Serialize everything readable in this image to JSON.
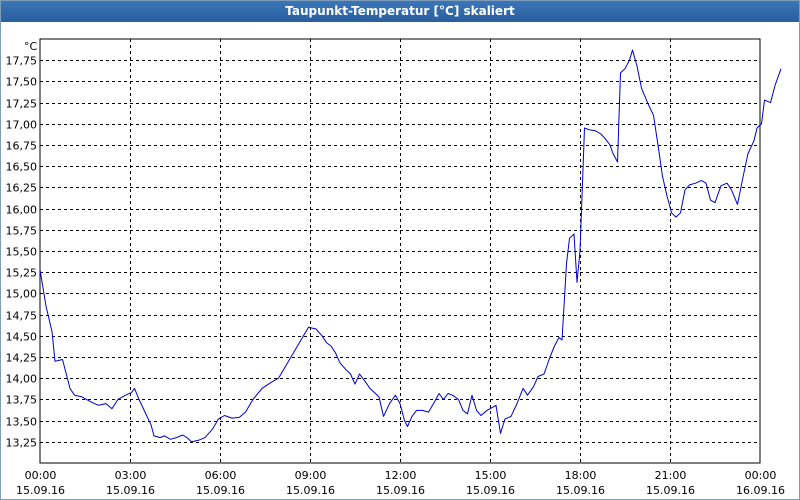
{
  "window": {
    "title": "Taupunkt-Temperatur [°C] skaliert"
  },
  "chart_data": {
    "type": "line",
    "title": "Taupunkt-Temperatur [°C] skaliert",
    "unit_label": "°C",
    "ylim": [
      13.0,
      18.0
    ],
    "y_ticks": [
      "13,25",
      "13,50",
      "13,75",
      "14,00",
      "14,25",
      "14,50",
      "14,75",
      "15,00",
      "15,25",
      "15,50",
      "15,75",
      "16,00",
      "16,25",
      "16,50",
      "16,75",
      "17,00",
      "17,25",
      "17,50",
      "17,75"
    ],
    "y_tick_values": [
      13.25,
      13.5,
      13.75,
      14.0,
      14.25,
      14.5,
      14.75,
      15.0,
      15.25,
      15.5,
      15.75,
      16.0,
      16.25,
      16.5,
      16.75,
      17.0,
      17.25,
      17.5,
      17.75
    ],
    "x_range_hours": [
      0,
      24
    ],
    "x_ticks": [
      {
        "hour": 0,
        "time": "00:00",
        "date": "15.09.16"
      },
      {
        "hour": 3,
        "time": "03:00",
        "date": "15.09.16"
      },
      {
        "hour": 6,
        "time": "06:00",
        "date": "15.09.16"
      },
      {
        "hour": 9,
        "time": "09:00",
        "date": "15.09.16"
      },
      {
        "hour": 12,
        "time": "12:00",
        "date": "15.09.16"
      },
      {
        "hour": 15,
        "time": "15:00",
        "date": "15.09.16"
      },
      {
        "hour": 18,
        "time": "18:00",
        "date": "15.09.16"
      },
      {
        "hour": 21,
        "time": "21:00",
        "date": "15.09.16"
      },
      {
        "hour": 24,
        "time": "00:00",
        "date": "16.09.16"
      }
    ],
    "grid": true,
    "series": [
      {
        "color": "#0000cc",
        "points": [
          [
            0.0,
            15.28
          ],
          [
            0.2,
            14.85
          ],
          [
            0.4,
            14.55
          ],
          [
            0.5,
            14.2
          ],
          [
            0.75,
            14.22
          ],
          [
            1.0,
            13.88
          ],
          [
            1.15,
            13.8
          ],
          [
            1.4,
            13.78
          ],
          [
            1.7,
            13.72
          ],
          [
            1.95,
            13.68
          ],
          [
            2.2,
            13.7
          ],
          [
            2.4,
            13.64
          ],
          [
            2.6,
            13.75
          ],
          [
            2.85,
            13.8
          ],
          [
            3.05,
            13.83
          ],
          [
            3.15,
            13.88
          ],
          [
            3.3,
            13.75
          ],
          [
            3.5,
            13.6
          ],
          [
            3.7,
            13.45
          ],
          [
            3.8,
            13.32
          ],
          [
            4.0,
            13.3
          ],
          [
            4.15,
            13.32
          ],
          [
            4.35,
            13.28
          ],
          [
            4.55,
            13.3
          ],
          [
            4.75,
            13.33
          ],
          [
            4.9,
            13.3
          ],
          [
            5.05,
            13.25
          ],
          [
            5.3,
            13.27
          ],
          [
            5.5,
            13.3
          ],
          [
            5.75,
            13.4
          ],
          [
            5.95,
            13.52
          ],
          [
            6.15,
            13.56
          ],
          [
            6.4,
            13.53
          ],
          [
            6.65,
            13.54
          ],
          [
            6.85,
            13.6
          ],
          [
            7.1,
            13.75
          ],
          [
            7.4,
            13.88
          ],
          [
            7.7,
            13.95
          ],
          [
            7.95,
            14.0
          ],
          [
            8.2,
            14.15
          ],
          [
            8.45,
            14.3
          ],
          [
            8.7,
            14.45
          ],
          [
            8.95,
            14.6
          ],
          [
            9.2,
            14.58
          ],
          [
            9.4,
            14.5
          ],
          [
            9.55,
            14.42
          ],
          [
            9.7,
            14.38
          ],
          [
            9.85,
            14.3
          ],
          [
            10.0,
            14.18
          ],
          [
            10.2,
            14.1
          ],
          [
            10.35,
            14.05
          ],
          [
            10.5,
            13.93
          ],
          [
            10.65,
            14.05
          ],
          [
            10.8,
            13.98
          ],
          [
            11.0,
            13.88
          ],
          [
            11.15,
            13.83
          ],
          [
            11.3,
            13.78
          ],
          [
            11.45,
            13.55
          ],
          [
            11.65,
            13.7
          ],
          [
            11.85,
            13.8
          ],
          [
            12.0,
            13.7
          ],
          [
            12.15,
            13.5
          ],
          [
            12.25,
            13.43
          ],
          [
            12.4,
            13.55
          ],
          [
            12.55,
            13.62
          ],
          [
            12.75,
            13.62
          ],
          [
            12.95,
            13.6
          ],
          [
            13.15,
            13.72
          ],
          [
            13.3,
            13.82
          ],
          [
            13.45,
            13.75
          ],
          [
            13.6,
            13.82
          ],
          [
            13.75,
            13.8
          ],
          [
            13.95,
            13.75
          ],
          [
            14.1,
            13.62
          ],
          [
            14.25,
            13.58
          ],
          [
            14.4,
            13.8
          ],
          [
            14.55,
            13.62
          ],
          [
            14.7,
            13.56
          ],
          [
            14.9,
            13.62
          ],
          [
            15.05,
            13.65
          ],
          [
            15.2,
            13.68
          ],
          [
            15.35,
            13.35
          ],
          [
            15.5,
            13.52
          ],
          [
            15.7,
            13.55
          ],
          [
            15.9,
            13.7
          ],
          [
            16.1,
            13.88
          ],
          [
            16.25,
            13.8
          ],
          [
            16.45,
            13.9
          ],
          [
            16.6,
            14.02
          ],
          [
            16.8,
            14.05
          ],
          [
            17.0,
            14.25
          ],
          [
            17.15,
            14.38
          ],
          [
            17.3,
            14.48
          ],
          [
            17.4,
            14.45
          ],
          [
            17.55,
            15.35
          ],
          [
            17.65,
            15.65
          ],
          [
            17.8,
            15.7
          ],
          [
            17.9,
            15.13
          ],
          [
            18.0,
            15.5
          ],
          [
            18.15,
            16.95
          ],
          [
            18.3,
            16.93
          ],
          [
            18.5,
            16.92
          ],
          [
            18.7,
            16.88
          ],
          [
            18.85,
            16.82
          ],
          [
            19.0,
            16.75
          ],
          [
            19.1,
            16.65
          ],
          [
            19.25,
            16.55
          ],
          [
            19.35,
            17.6
          ],
          [
            19.5,
            17.65
          ],
          [
            19.65,
            17.75
          ],
          [
            19.75,
            17.87
          ],
          [
            19.9,
            17.68
          ],
          [
            20.05,
            17.42
          ],
          [
            20.25,
            17.25
          ],
          [
            20.45,
            17.1
          ],
          [
            20.6,
            16.75
          ],
          [
            20.75,
            16.38
          ],
          [
            20.9,
            16.15
          ],
          [
            21.05,
            15.95
          ],
          [
            21.2,
            15.9
          ],
          [
            21.35,
            15.95
          ],
          [
            21.5,
            16.22
          ],
          [
            21.65,
            16.28
          ],
          [
            21.85,
            16.3
          ],
          [
            22.05,
            16.33
          ],
          [
            22.2,
            16.3
          ],
          [
            22.35,
            16.1
          ],
          [
            22.5,
            16.07
          ],
          [
            22.7,
            16.27
          ],
          [
            22.9,
            16.3
          ],
          [
            23.05,
            16.22
          ],
          [
            23.25,
            16.05
          ],
          [
            23.45,
            16.4
          ],
          [
            23.6,
            16.65
          ],
          [
            23.8,
            16.8
          ],
          [
            23.9,
            16.95
          ],
          [
            24.05,
            17.0
          ],
          [
            24.15,
            17.28
          ],
          [
            24.35,
            17.25
          ],
          [
            24.5,
            17.45
          ],
          [
            24.7,
            17.65
          ]
        ]
      }
    ]
  }
}
